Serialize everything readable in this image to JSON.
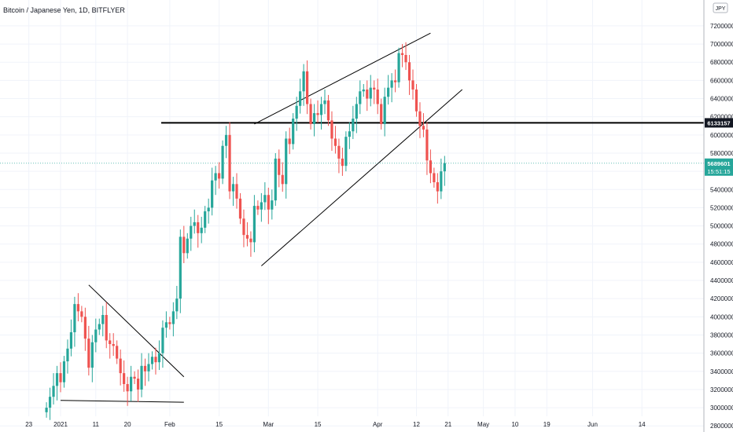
{
  "header": {
    "title": "Bitcoin / Japanese Yen, 1D, BITFLYER"
  },
  "currency_badge": "JPY",
  "price_tags": {
    "resistance": "6133157",
    "last": "5689601",
    "countdown": "15:51:15"
  },
  "colors": {
    "up": "#26a69a",
    "down": "#ef5350",
    "line": "#000000",
    "grid": "#f0f3fa",
    "tag_bg": "#131722",
    "last_tag": "#26a69a"
  },
  "chart_data": {
    "type": "candlestick",
    "title": "Bitcoin / Japanese Yen, 1D, BITFLYER",
    "x_tick_labels": [
      "23",
      "2021",
      "11",
      "20",
      "Feb",
      "15",
      "Mar",
      "15",
      "Apr",
      "12",
      "21",
      "May",
      "10",
      "19",
      "Jun",
      "14"
    ],
    "x_tick_days": [
      -9,
      0,
      10,
      19,
      31,
      45,
      59,
      73,
      90,
      101,
      110,
      120,
      129,
      138,
      151,
      165
    ],
    "y_tick_labels": [
      "2800000",
      "3000000",
      "3200000",
      "3400000",
      "3600000",
      "3800000",
      "4000000",
      "4200000",
      "4400000",
      "4600000",
      "4800000",
      "5000000",
      "5200000",
      "5400000",
      "5600000",
      "5800000",
      "6000000",
      "6200000",
      "6400000",
      "6600000",
      "6800000",
      "7000000",
      "7200000"
    ],
    "ylim": [
      2750000,
      7450000
    ],
    "grid": true,
    "closes_jpy": [
      3000000,
      3120000,
      3240000,
      3380000,
      3280000,
      3510000,
      3650000,
      3830000,
      4140000,
      4060000,
      4000000,
      3760000,
      3440000,
      3720000,
      3860000,
      3920000,
      4020000,
      3740000,
      3700000,
      3680000,
      3540000,
      3380000,
      3260000,
      3180000,
      3340000,
      3320000,
      3200000,
      3460000,
      3400000,
      3480000,
      3560000,
      3500000,
      3600000,
      3880000,
      3940000,
      3920000,
      4060000,
      4200000,
      4880000,
      4700000,
      4860000,
      5000000,
      5040000,
      4920000,
      4980000,
      5160000,
      5200000,
      5500000,
      5580000,
      5520000,
      5880000,
      6000000,
      5380000,
      5460000,
      5300000,
      5080000,
      4900000,
      4860000,
      4820000,
      5220000,
      5180000,
      5260000,
      5340000,
      5180000,
      5280000,
      5740000,
      5560000,
      5460000,
      5960000,
      5900000,
      6180000,
      6320000,
      6480000,
      6700000,
      6340000,
      6120000,
      6240000,
      6220000,
      6340000,
      6380000,
      6160000,
      5960000,
      5880000,
      5740000,
      5660000,
      5980000,
      6040000,
      6180000,
      6340000,
      6480000,
      6500000,
      6400000,
      6520000,
      6500000,
      6340000,
      6120000,
      6420000,
      6520000,
      6600000,
      6580000,
      6900000,
      6880000,
      6800000,
      6600000,
      6500000,
      6260000,
      6100000,
      6060000,
      5720000,
      5580000,
      5480000,
      5380000,
      5600000,
      5689601
    ],
    "opens_jpy": [
      2950000,
      3000000,
      3120000,
      3240000,
      3380000,
      3280000,
      3510000,
      3650000,
      3830000,
      4140000,
      4060000,
      4000000,
      3760000,
      3440000,
      3720000,
      3860000,
      3920000,
      4020000,
      3740000,
      3700000,
      3680000,
      3540000,
      3380000,
      3260000,
      3180000,
      3340000,
      3320000,
      3200000,
      3460000,
      3400000,
      3480000,
      3560000,
      3500000,
      3600000,
      3880000,
      3940000,
      3920000,
      4060000,
      4200000,
      4880000,
      4700000,
      4860000,
      5000000,
      5040000,
      4920000,
      4980000,
      5160000,
      5200000,
      5500000,
      5580000,
      5520000,
      5880000,
      6000000,
      5380000,
      5460000,
      5300000,
      5080000,
      4900000,
      4860000,
      4820000,
      5220000,
      5180000,
      5260000,
      5340000,
      5180000,
      5280000,
      5740000,
      5560000,
      5460000,
      5960000,
      5900000,
      6180000,
      6320000,
      6480000,
      6700000,
      6340000,
      6120000,
      6240000,
      6220000,
      6340000,
      6380000,
      6160000,
      5960000,
      5880000,
      5740000,
      5660000,
      5980000,
      6040000,
      6180000,
      6340000,
      6480000,
      6500000,
      6400000,
      6520000,
      6500000,
      6340000,
      6120000,
      6420000,
      6520000,
      6600000,
      6580000,
      6900000,
      6880000,
      6800000,
      6600000,
      6500000,
      6260000,
      6100000,
      6060000,
      5720000,
      5580000,
      5480000,
      5380000,
      5600000
    ],
    "resistance_level": 6133157,
    "last_price": 5689601,
    "trendlines": [
      {
        "from": [
          8,
          4350000
        ],
        "to": [
          35,
          3340000
        ]
      },
      {
        "from": [
          0,
          3080000
        ],
        "to": [
          35,
          3060000
        ]
      },
      {
        "from": [
          55,
          6120000
        ],
        "to": [
          105,
          7120000
        ]
      },
      {
        "from": [
          57,
          4560000
        ],
        "to": [
          114,
          6500000
        ]
      }
    ]
  }
}
